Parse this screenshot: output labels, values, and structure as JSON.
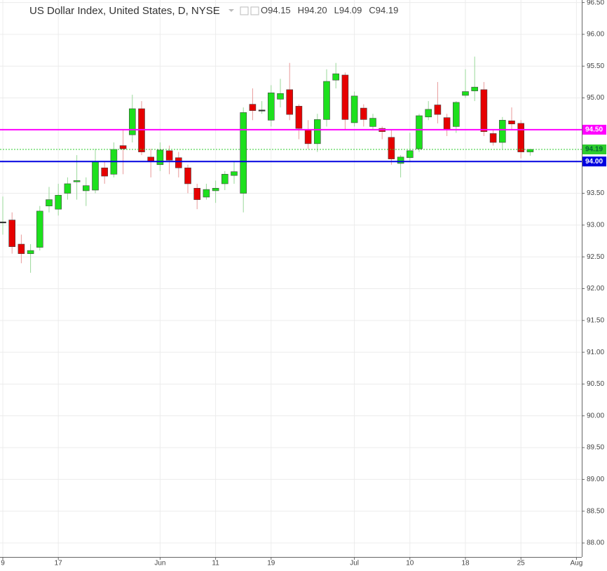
{
  "chart_data": {
    "type": "candlestick",
    "title": "US Dollar Index, United States, D, NYSE",
    "ohlc_legend": [
      {
        "key": "O",
        "value": "94.15"
      },
      {
        "key": "H",
        "value": "94.20"
      },
      {
        "key": "L",
        "value": "94.09"
      },
      {
        "key": "C",
        "value": "94.19"
      }
    ],
    "categories": [
      "9",
      null,
      null,
      null,
      null,
      null,
      "17",
      null,
      null,
      null,
      null,
      null,
      null,
      null,
      null,
      null,
      null,
      "Jun",
      null,
      null,
      null,
      null,
      null,
      "11",
      null,
      null,
      null,
      null,
      null,
      "19",
      null,
      null,
      null,
      null,
      null,
      null,
      null,
      null,
      "Jul",
      null,
      null,
      null,
      null,
      null,
      "10",
      null,
      null,
      null,
      null,
      null,
      "18",
      null,
      null,
      null,
      null,
      null,
      "25",
      null,
      null,
      null,
      null,
      null,
      "Aug"
    ],
    "open": [
      93.05,
      93.08,
      92.7,
      92.55,
      92.65,
      93.3,
      93.25,
      93.5,
      93.68,
      93.54,
      93.55,
      93.9,
      93.8,
      94.25,
      94.42,
      94.83,
      94.07,
      93.95,
      94.17,
      94.06,
      93.9,
      93.58,
      93.44,
      93.54,
      93.65,
      93.78,
      93.5,
      94.9,
      94.81,
      94.65,
      94.98,
      95.13,
      94.87,
      94.5,
      94.28,
      94.66,
      95.28,
      95.36,
      94.61,
      94.84,
      94.55,
      94.52,
      94.38,
      93.97,
      94.06,
      94.2,
      94.7,
      94.89,
      94.69,
      94.55,
      95.04,
      95.11,
      95.13,
      94.44,
      94.3,
      94.64,
      94.6,
      94.15,
      null,
      null,
      null,
      null,
      null
    ],
    "high": [
      93.45,
      93.2,
      92.85,
      92.7,
      93.3,
      93.6,
      93.65,
      93.75,
      94.1,
      93.75,
      94.2,
      94.0,
      94.3,
      94.5,
      95.05,
      94.95,
      94.2,
      94.3,
      94.25,
      94.15,
      93.95,
      93.65,
      93.65,
      93.7,
      93.85,
      94.0,
      94.85,
      95.15,
      94.95,
      95.2,
      95.3,
      95.55,
      94.9,
      94.65,
      94.75,
      95.45,
      95.55,
      95.4,
      95.1,
      94.9,
      94.75,
      94.55,
      94.5,
      94.1,
      94.45,
      94.75,
      94.95,
      95.25,
      94.75,
      94.95,
      95.45,
      95.65,
      95.25,
      94.5,
      94.7,
      94.85,
      94.65,
      94.2,
      null,
      null,
      null,
      null,
      null
    ],
    "low": [
      92.85,
      92.55,
      92.4,
      92.25,
      92.6,
      93.2,
      93.15,
      93.4,
      93.4,
      93.3,
      93.5,
      93.65,
      93.75,
      93.8,
      94.3,
      94.1,
      93.75,
      93.85,
      93.8,
      93.75,
      93.5,
      93.25,
      93.4,
      93.35,
      93.55,
      93.65,
      93.2,
      94.65,
      94.75,
      94.55,
      94.85,
      94.65,
      94.35,
      94.2,
      94.15,
      94.55,
      95.15,
      94.5,
      94.55,
      94.55,
      94.5,
      94.35,
      93.95,
      93.75,
      94.0,
      94.15,
      94.65,
      94.6,
      94.4,
      94.45,
      95.0,
      94.95,
      94.4,
      94.25,
      94.2,
      94.5,
      94.05,
      94.09,
      null,
      null,
      null,
      null,
      null
    ],
    "close": [
      93.05,
      92.66,
      92.55,
      92.6,
      93.22,
      93.4,
      93.47,
      93.65,
      93.7,
      93.62,
      94.0,
      93.77,
      94.19,
      94.2,
      94.83,
      94.15,
      94.0,
      94.18,
      94.02,
      93.9,
      93.65,
      93.4,
      93.56,
      93.58,
      93.8,
      93.84,
      94.77,
      94.8,
      94.81,
      95.08,
      95.07,
      94.74,
      94.52,
      94.28,
      94.66,
      95.26,
      95.38,
      94.66,
      95.03,
      94.66,
      94.68,
      94.47,
      94.04,
      94.07,
      94.17,
      94.72,
      94.82,
      94.74,
      94.5,
      94.93,
      95.1,
      95.17,
      94.47,
      94.3,
      94.65,
      94.59,
      94.15,
      94.19,
      null,
      null,
      null,
      null,
      null
    ],
    "up_color": "#1de01d",
    "down_color": "#e60000",
    "ylim": [
      87.78,
      96.54
    ],
    "yticks": [
      {
        "value": 88,
        "label": "88.00"
      },
      {
        "value": 88.5,
        "label": "88.50"
      },
      {
        "value": 89,
        "label": "89.00"
      },
      {
        "value": 89.5,
        "label": "89.50"
      },
      {
        "value": 90,
        "label": "90.00"
      },
      {
        "value": 90.5,
        "label": "90.50"
      },
      {
        "value": 91,
        "label": "91.00"
      },
      {
        "value": 91.5,
        "label": "91.50"
      },
      {
        "value": 92,
        "label": "92.00"
      },
      {
        "value": 92.5,
        "label": "92.50"
      },
      {
        "value": 93,
        "label": "93.00"
      },
      {
        "value": 93.5,
        "label": "93.50"
      },
      {
        "value": 94,
        "label": "94.00"
      },
      {
        "value": 94.5,
        "label": "94.50"
      },
      {
        "value": 95,
        "label": "95.00"
      },
      {
        "value": 95.5,
        "label": "95.50"
      },
      {
        "value": 96,
        "label": "96.00"
      },
      {
        "value": 96.5,
        "label": "96.50"
      }
    ],
    "grid": true,
    "levels": [
      {
        "value": 94.5,
        "label": "94.50",
        "color": "#ff00ff",
        "style": "solid"
      },
      {
        "value": 94.19,
        "label": "94.19",
        "color": "#2ecc2e",
        "style": "dotted"
      },
      {
        "value": 94.0,
        "label": "94.00",
        "color": "#0000e0",
        "style": "solid"
      }
    ]
  }
}
